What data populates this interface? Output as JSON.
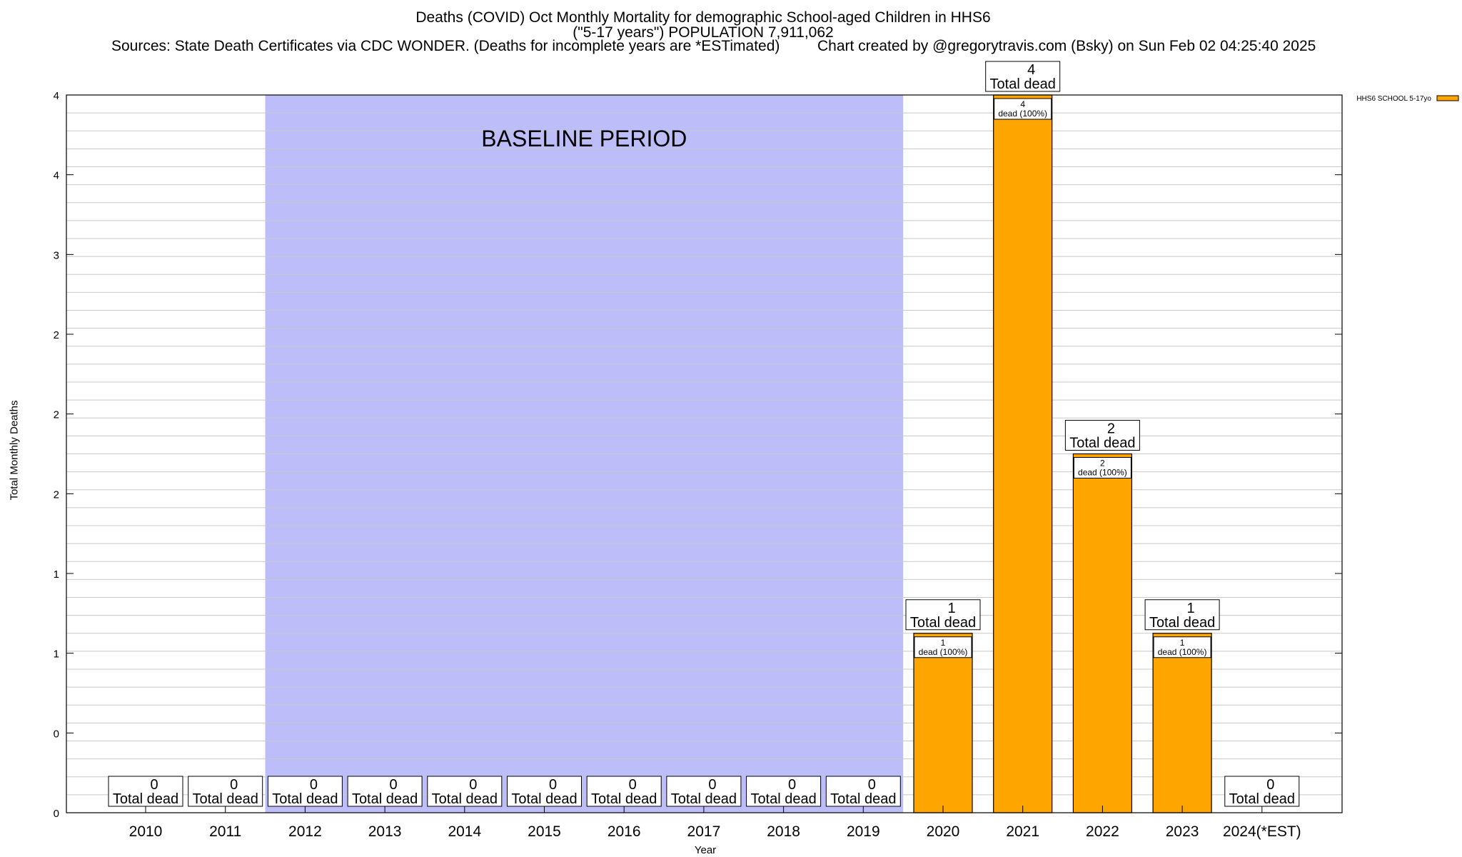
{
  "chart_data": {
    "type": "bar",
    "title_lines": [
      "Deaths (COVID) Oct Monthly Mortality for demographic School-aged Children in HHS6",
      "(\"5-17 years\") POPULATION 7,911,062"
    ],
    "source_text": "Sources: State Death Certificates via CDC WONDER. (Deaths for incomplete years are *ESTimated)",
    "credit_text": "Chart created by @gregorytravis.com (Bsky) on Sun Feb 02 04:25:40 2025",
    "xlabel": "Year",
    "ylabel": "Total Monthly Deaths",
    "ylim": [
      0,
      4
    ],
    "ytick_labels": [
      "0",
      "0",
      "1",
      "1",
      "2",
      "2",
      "2",
      "3",
      "4",
      "4"
    ],
    "categories": [
      "2010",
      "2011",
      "2012",
      "2013",
      "2014",
      "2015",
      "2016",
      "2017",
      "2018",
      "2019",
      "2020",
      "2021",
      "2022",
      "2023",
      "2024(*EST)"
    ],
    "series": [
      {
        "name": "HHS6 SCHOOL 5-17yo",
        "values": [
          0,
          0,
          0,
          0,
          0,
          0,
          0,
          0,
          0,
          0,
          1,
          4,
          2,
          1,
          0
        ],
        "color": "#ffa500"
      }
    ],
    "total_label": "Total dead",
    "bar_inner_labels": [
      {
        "value": "1",
        "text": "dead (100%)"
      },
      {
        "value": "4",
        "text": "dead (100%)"
      },
      {
        "value": "2",
        "text": "dead (100%)"
      },
      {
        "value": "1",
        "text": "dead (100%)"
      }
    ],
    "baseline": {
      "label": "BASELINE PERIOD",
      "from": "2012",
      "to": "2019",
      "color": "#bdbdfa"
    },
    "grid": true,
    "legend_position": "top-right"
  }
}
